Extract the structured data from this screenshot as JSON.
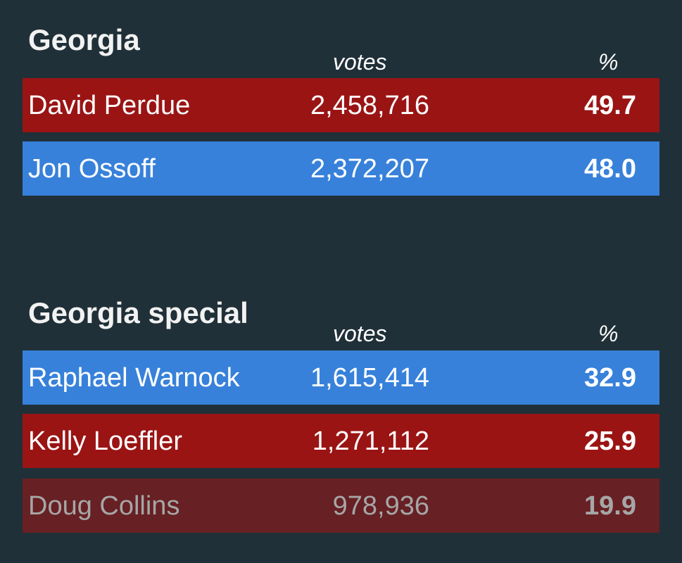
{
  "races": [
    {
      "title": "Georgia",
      "votes_header": "votes",
      "pct_header": "%",
      "candidates": [
        {
          "name": "David Perdue",
          "votes": "2,458,716",
          "pct": "49.7",
          "party": "rep"
        },
        {
          "name": "Jon Ossoff",
          "votes": "2,372,207",
          "pct": "48.0",
          "party": "dem"
        }
      ]
    },
    {
      "title": "Georgia special",
      "votes_header": "votes",
      "pct_header": "%",
      "candidates": [
        {
          "name": "Raphael Warnock",
          "votes": "1,615,414",
          "pct": "32.9",
          "party": "dem"
        },
        {
          "name": "Kelly Loeffler",
          "votes": "1,271,112",
          "pct": "25.9",
          "party": "rep"
        },
        {
          "name": "Doug Collins",
          "votes": "978,936",
          "pct": "19.9",
          "party": "eliminated"
        }
      ]
    }
  ],
  "colors": {
    "background": "#203038",
    "republican": "#9a1414",
    "democrat": "#3781da",
    "eliminated": "#672024",
    "eliminated_text": "#a6a6a6"
  }
}
